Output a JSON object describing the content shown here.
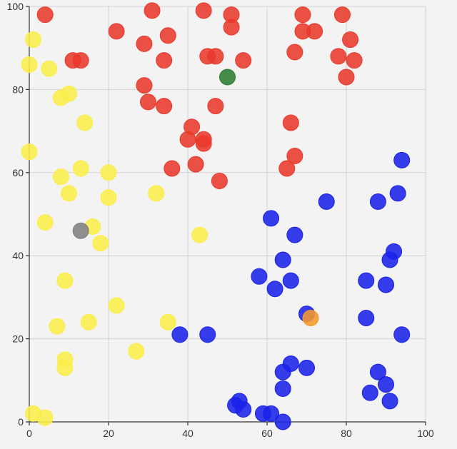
{
  "chart_data": {
    "type": "scatter",
    "title": "",
    "xlabel": "",
    "ylabel": "",
    "xlim": [
      0,
      100
    ],
    "ylim": [
      0,
      100
    ],
    "x_ticks": [
      0,
      20,
      40,
      60,
      80,
      100
    ],
    "y_ticks": [
      0,
      20,
      40,
      60,
      80,
      100
    ],
    "grid": true,
    "series": [
      {
        "color": "#e8392b",
        "points": [
          [
            4,
            98
          ],
          [
            22,
            94
          ],
          [
            29,
            91
          ],
          [
            31,
            99
          ],
          [
            35,
            93
          ],
          [
            34,
            87
          ],
          [
            44,
            99
          ],
          [
            51,
            98
          ],
          [
            51,
            95
          ],
          [
            45,
            88
          ],
          [
            47,
            88
          ],
          [
            54,
            87
          ],
          [
            29,
            81
          ],
          [
            30,
            77
          ],
          [
            34,
            76
          ],
          [
            47,
            76
          ],
          [
            11,
            87
          ],
          [
            13,
            87
          ],
          [
            41,
            71
          ],
          [
            40,
            68
          ],
          [
            44,
            68
          ],
          [
            44,
            67
          ],
          [
            42,
            62
          ],
          [
            36,
            61
          ],
          [
            48,
            58
          ],
          [
            69,
            98
          ],
          [
            79,
            98
          ],
          [
            69,
            94
          ],
          [
            72,
            94
          ],
          [
            81,
            92
          ],
          [
            67,
            89
          ],
          [
            78,
            88
          ],
          [
            82,
            87
          ],
          [
            80,
            83
          ],
          [
            66,
            72
          ],
          [
            67,
            64
          ],
          [
            65,
            61
          ]
        ]
      },
      {
        "color": "#fbee4a",
        "points": [
          [
            1,
            92
          ],
          [
            0,
            86
          ],
          [
            5,
            85
          ],
          [
            10,
            79
          ],
          [
            8,
            78
          ],
          [
            14,
            72
          ],
          [
            0,
            65
          ],
          [
            8,
            59
          ],
          [
            13,
            61
          ],
          [
            20,
            60
          ],
          [
            10,
            55
          ],
          [
            20,
            54
          ],
          [
            32,
            55
          ],
          [
            4,
            48
          ],
          [
            16,
            47
          ],
          [
            18,
            43
          ],
          [
            43,
            45
          ],
          [
            9,
            34
          ],
          [
            22,
            28
          ],
          [
            7,
            23
          ],
          [
            15,
            24
          ],
          [
            35,
            24
          ],
          [
            27,
            17
          ],
          [
            9,
            15
          ],
          [
            9,
            13
          ],
          [
            1,
            2
          ],
          [
            4,
            1
          ]
        ]
      },
      {
        "color": "#1a22e8",
        "points": [
          [
            94,
            63
          ],
          [
            93,
            55
          ],
          [
            88,
            53
          ],
          [
            75,
            53
          ],
          [
            61,
            49
          ],
          [
            67,
            45
          ],
          [
            92,
            41
          ],
          [
            91,
            39
          ],
          [
            64,
            39
          ],
          [
            58,
            35
          ],
          [
            66,
            34
          ],
          [
            62,
            32
          ],
          [
            85,
            34
          ],
          [
            90,
            33
          ],
          [
            70,
            26
          ],
          [
            85,
            25
          ],
          [
            94,
            21
          ],
          [
            38,
            21
          ],
          [
            45,
            21
          ],
          [
            66,
            14
          ],
          [
            70,
            13
          ],
          [
            64,
            12
          ],
          [
            88,
            12
          ],
          [
            90,
            9
          ],
          [
            64,
            8
          ],
          [
            86,
            7
          ],
          [
            91,
            5
          ],
          [
            53,
            5
          ],
          [
            52,
            4
          ],
          [
            54,
            3
          ],
          [
            59,
            2
          ],
          [
            61,
            2
          ],
          [
            64,
            0
          ]
        ]
      },
      {
        "color": "#2e7d32",
        "points": [
          [
            50,
            83
          ]
        ]
      },
      {
        "color": "#7f7f7f",
        "points": [
          [
            13,
            46
          ]
        ]
      },
      {
        "color": "#f59a2b",
        "points": [
          [
            71,
            25
          ]
        ]
      }
    ]
  }
}
